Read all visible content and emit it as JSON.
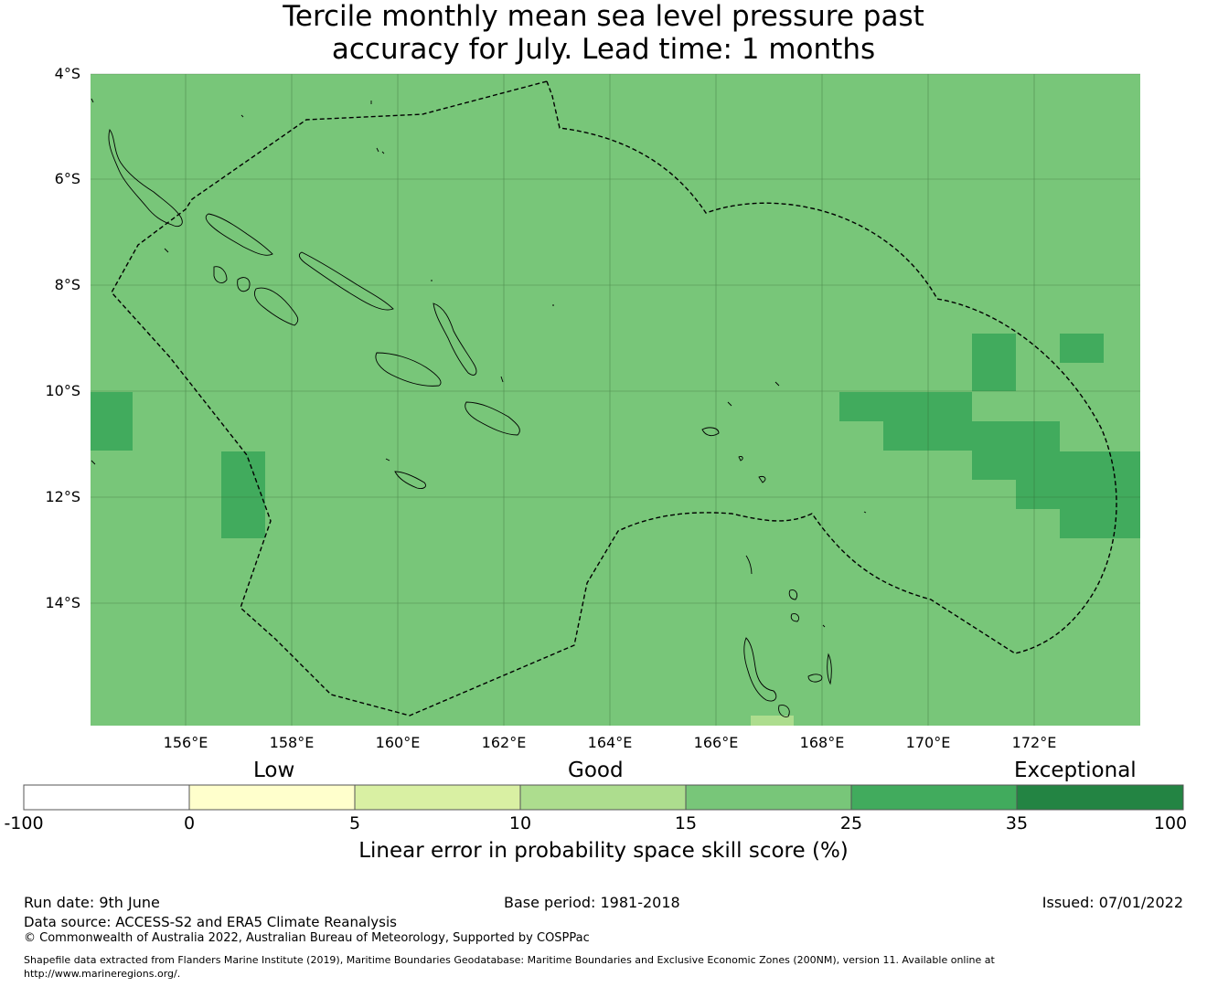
{
  "title": {
    "line1": "Tercile monthly mean sea level pressure past",
    "line2": "accuracy for July. Lead time: 1 months"
  },
  "map": {
    "lat_labels": [
      "4°S",
      "6°S",
      "8°S",
      "10°S",
      "12°S",
      "14°S"
    ],
    "lon_labels": [
      "156°E",
      "158°E",
      "160°E",
      "162°E",
      "164°E",
      "166°E",
      "168°E",
      "170°E",
      "172°E"
    ],
    "base_color": "#78c679",
    "higher_color": "#41ab5d",
    "lower_color": "#addd8e",
    "boundary_style": "dashed",
    "coastline_color": "#000000"
  },
  "colorbar": {
    "categories": [
      "Low",
      "Good",
      "Exceptional"
    ],
    "ticks": [
      "-100",
      "0",
      "5",
      "10",
      "15",
      "25",
      "35",
      "100"
    ],
    "colors": [
      "#ffffff",
      "#ffffcc",
      "#d9f0a3",
      "#addd8e",
      "#78c679",
      "#41ab5d",
      "#238443"
    ],
    "label": "Linear error in probability space skill score (%)"
  },
  "footer": {
    "run_date": "Run date: 9th June",
    "base_period": "Base period: 1981-2018",
    "issued": "Issued: 07/01/2022",
    "data_source": "Data source: ACCESS-S2 and ERA5 Climate Reanalysis",
    "copyright": "© Commonwealth of Australia 2022, Australian Bureau of Meteorology, Supported by COSPPac",
    "shapefile_1": "Shapefile data extracted from Flanders Marine Institute (2019), Maritime Boundaries Geodatabase: Maritime Boundaries and Exclusive Economic Zones (200NM), version 11. Available online at",
    "shapefile_2": "http://www.marineregions.org/."
  }
}
